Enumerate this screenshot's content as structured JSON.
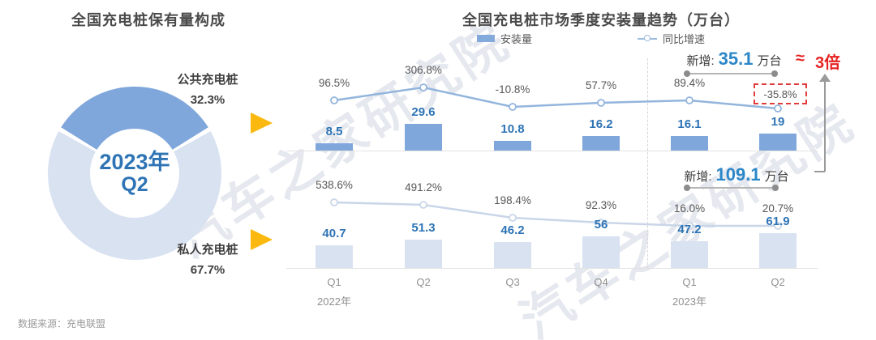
{
  "ui": {
    "legend": {
      "bar_label": "安装量",
      "line_label": "同比增速"
    },
    "compare": {
      "approx": "≈",
      "label": "3倍"
    },
    "source_note": "数据来源：充电联盟",
    "watermark_text": "汽车之家研究院"
  },
  "colors": {
    "bar_dark": "#7FA7DB",
    "bar_light": "#D9E2F1",
    "line_dark": "#93B5DD",
    "line_light": "#C9D6E8",
    "value_label_blue": "#2E74B5",
    "annotation_number_blue": "#2B87C8",
    "highlight_red": "#E23B3B",
    "arrow_yellow": "#FBB90F",
    "axis_gray": "#E2E2E2"
  },
  "axis": {
    "quarters": [
      "Q1",
      "Q2",
      "Q3",
      "Q4",
      "Q1",
      "Q2"
    ],
    "years": [
      {
        "index": 0,
        "label": "2022年"
      },
      {
        "index": 4,
        "label": "2023年"
      }
    ]
  },
  "chart_data": [
    {
      "type": "pie",
      "title": "全国充电桩保有量构成",
      "labels": [
        "公共充电桩",
        "私人充电桩"
      ],
      "values": [
        32.3,
        67.7
      ],
      "value_labels": [
        "32.3%",
        "67.7%"
      ],
      "center_line1": "2023年",
      "center_line2": "Q2",
      "colors": [
        "#7FA7DB",
        "#D9E2F1"
      ]
    },
    {
      "type": "bar",
      "subchart": "upper",
      "title": "全国充电桩市场季度安装量趋势（万台）",
      "categories": [
        "2022-Q1",
        "2022-Q2",
        "2022-Q3",
        "2022-Q4",
        "2023-Q1",
        "2023-Q2"
      ],
      "series": [
        {
          "name": "安装量",
          "type": "bar",
          "values": [
            8.5,
            29.6,
            10.8,
            16.2,
            16.1,
            19
          ],
          "labels": [
            "8.5",
            "29.6",
            "10.8",
            "16.2",
            "16.1",
            "19"
          ]
        },
        {
          "name": "同比增速",
          "type": "line",
          "unit": "%",
          "values": [
            96.5,
            306.8,
            -10.8,
            57.7,
            89.4,
            -35.8
          ],
          "labels": [
            "96.5%",
            "306.8%",
            "-10.8%",
            "57.7%",
            "89.4%",
            "-35.8%"
          ]
        }
      ],
      "annotation": {
        "prefix": "新增:",
        "number": "35.1",
        "suffix": "万台"
      },
      "highlight_boxed_label": "-35.8%"
    },
    {
      "type": "bar",
      "subchart": "lower",
      "categories": [
        "2022-Q1",
        "2022-Q2",
        "2022-Q3",
        "2022-Q4",
        "2023-Q1",
        "2023-Q2"
      ],
      "series": [
        {
          "name": "安装量",
          "type": "bar",
          "values": [
            40.7,
            51.3,
            46.2,
            56,
            47.2,
            61.9
          ],
          "labels": [
            "40.7",
            "51.3",
            "46.2",
            "56",
            "47.2",
            "61.9"
          ]
        },
        {
          "name": "同比增速",
          "type": "line",
          "unit": "%",
          "values": [
            538.6,
            491.2,
            198.4,
            92.3,
            16.0,
            20.7
          ],
          "labels": [
            "538.6%",
            "491.2%",
            "198.4%",
            "92.3%",
            "16.0%",
            "20.7%"
          ]
        }
      ],
      "annotation": {
        "prefix": "新增:",
        "number": "109.1",
        "suffix": "万台"
      }
    }
  ]
}
